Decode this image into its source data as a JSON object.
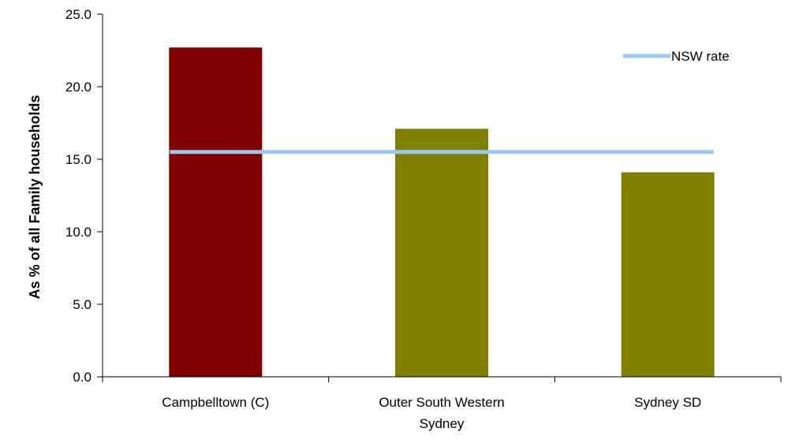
{
  "chart_data": {
    "type": "bar",
    "title": "",
    "xlabel": "",
    "ylabel": "As % of all Family households",
    "categories": [
      [
        "Campbelltown (C)"
      ],
      [
        "Outer South Western",
        "Sydney"
      ],
      [
        "Sydney SD"
      ]
    ],
    "values": [
      22.7,
      17.1,
      14.1
    ],
    "bar_colors": [
      "#800000",
      "#808000",
      "#808000"
    ],
    "ylim": [
      0,
      25
    ],
    "yticks": [
      "0.0",
      "5.0",
      "10.0",
      "15.0",
      "20.0",
      "25.0"
    ],
    "ytick_values": [
      0,
      5,
      10,
      15,
      20,
      25
    ],
    "grid": false,
    "reference_line": {
      "name": "NSW rate",
      "value": 15.5,
      "color": "#99c9f0"
    },
    "legend": {
      "placement": "top-right",
      "entries": [
        "NSW rate"
      ]
    }
  }
}
